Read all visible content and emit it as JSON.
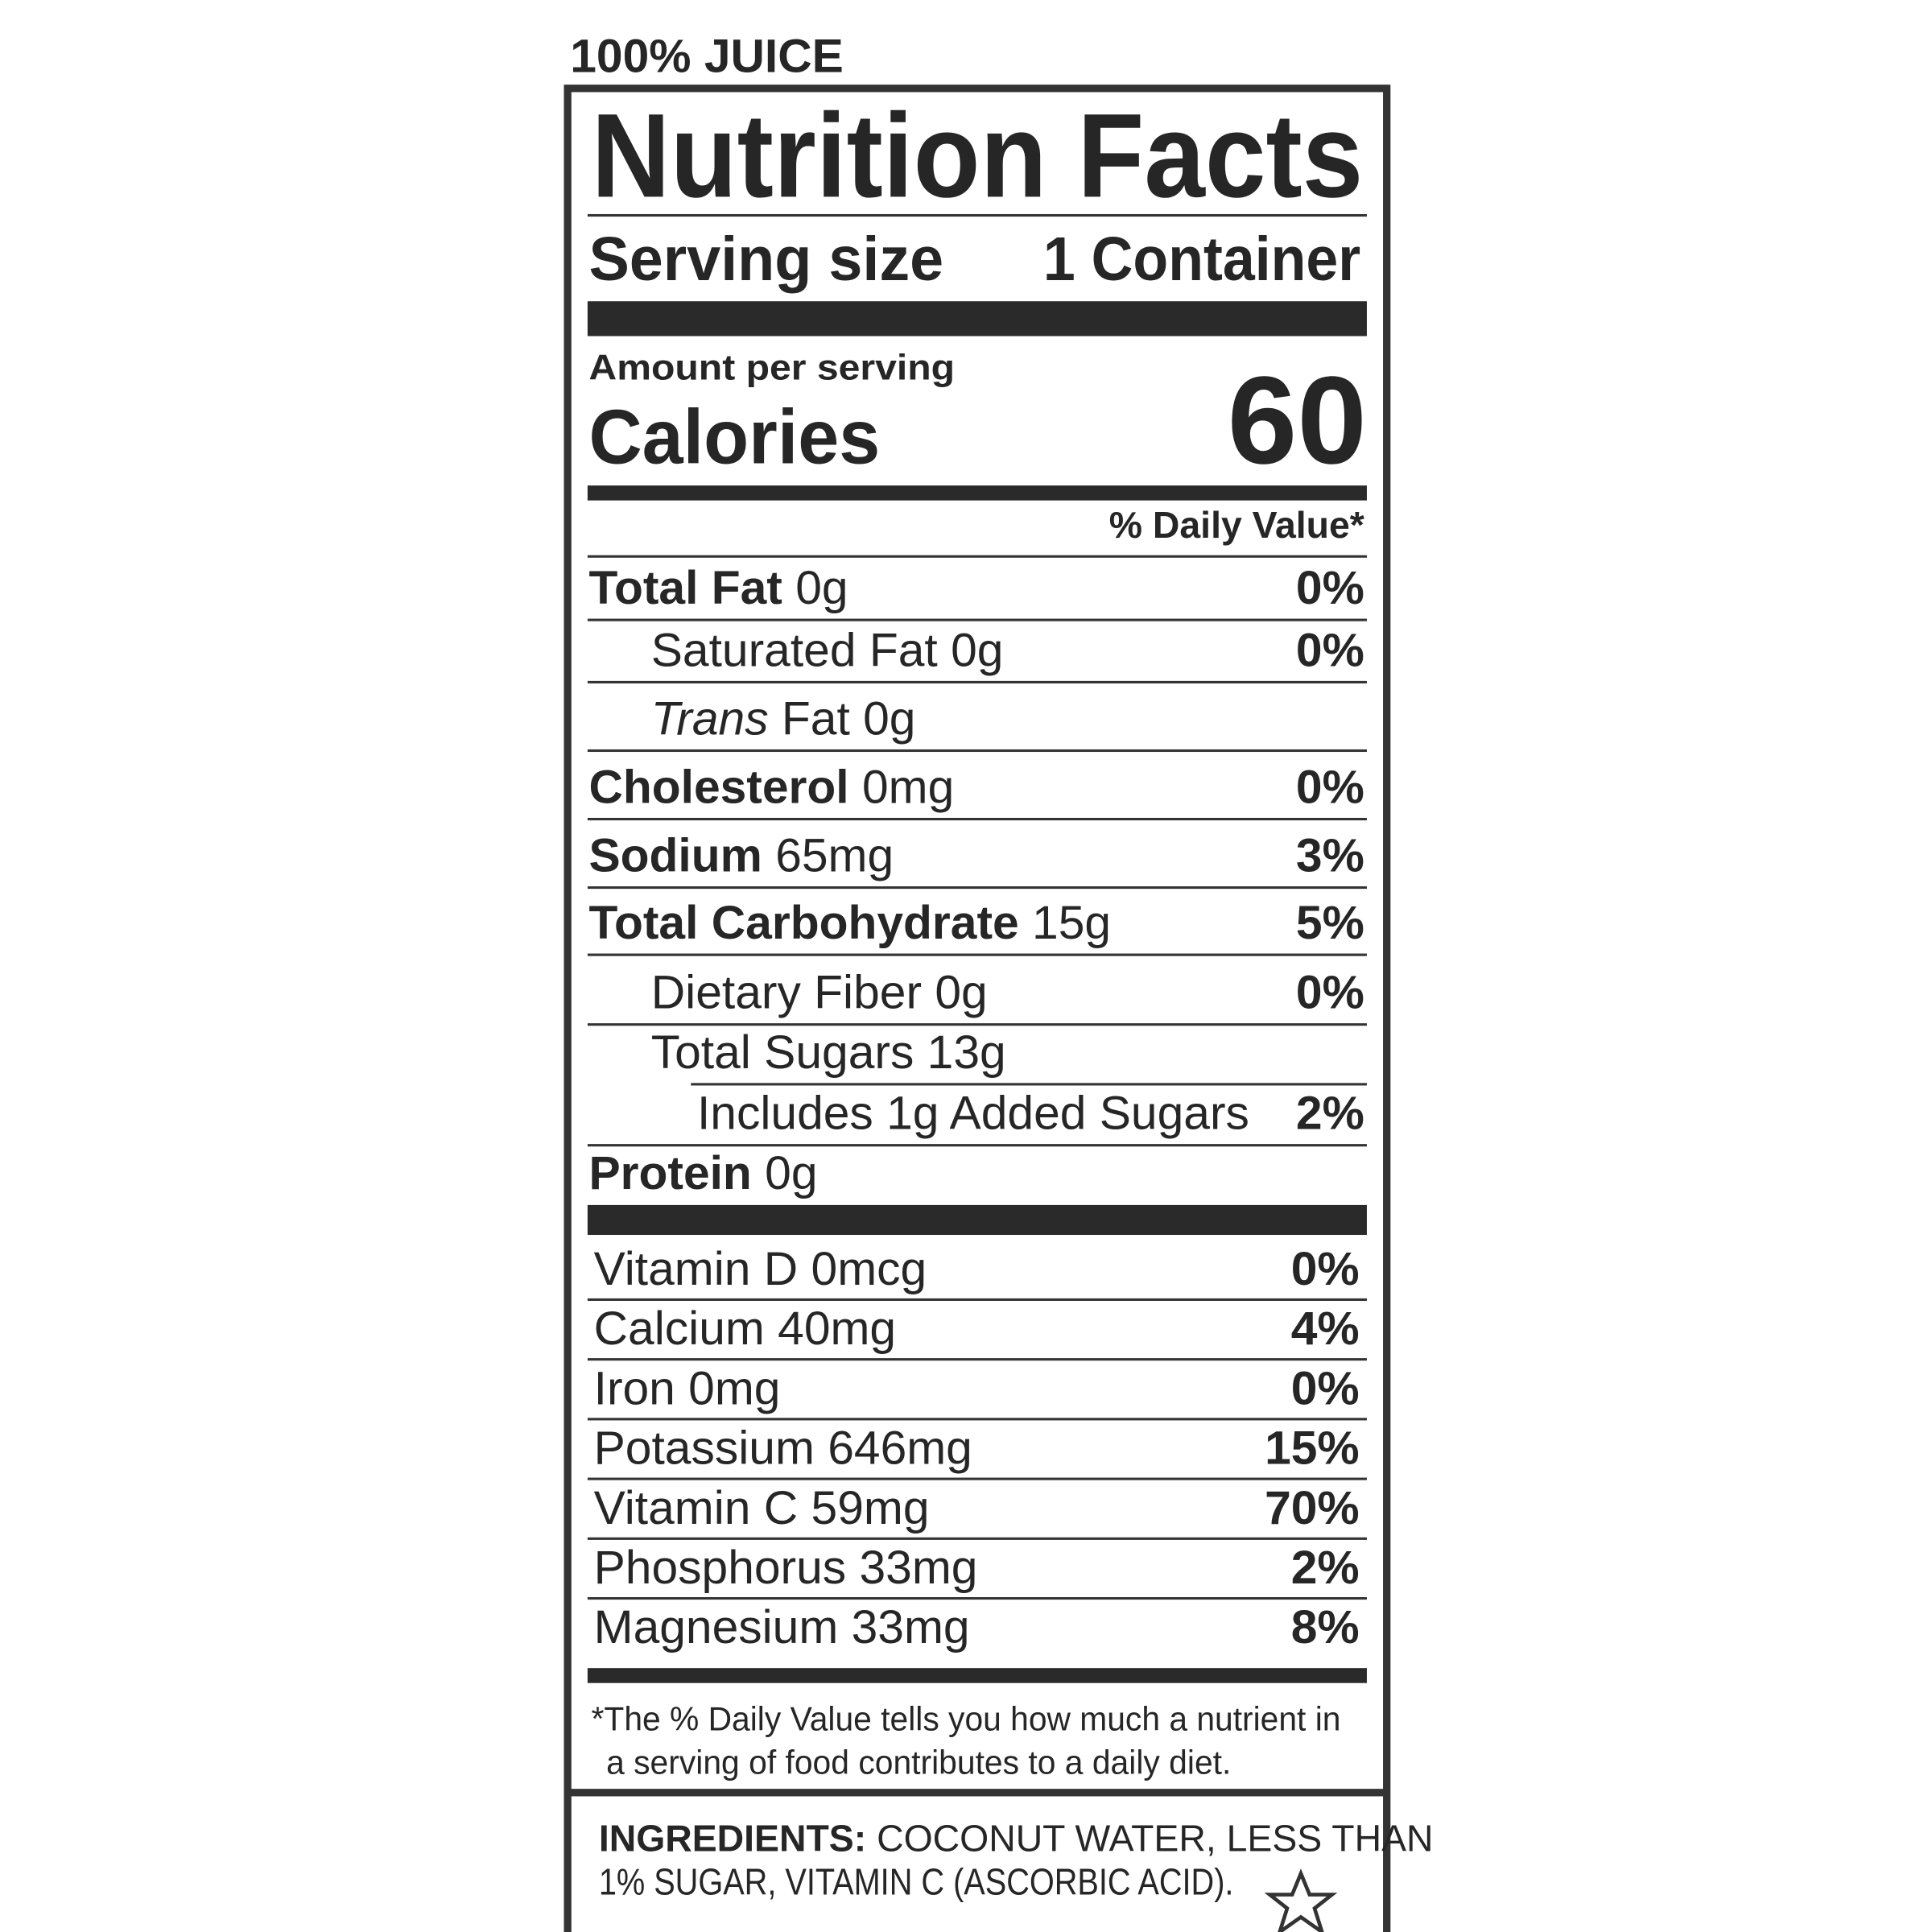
{
  "top_label": "100% JUICE",
  "title": "Nutrition Facts",
  "serving": {
    "label": "Serving size",
    "value": "1 Container"
  },
  "amount_per_serving": "Amount per serving",
  "calories": {
    "label": "Calories",
    "value": "60"
  },
  "daily_value_header": "% Daily Value*",
  "nutrients": [
    {
      "name": "Total Fat",
      "amount": "0g",
      "dv": "0%",
      "level": 0
    },
    {
      "name": "Saturated Fat",
      "amount": "0g",
      "dv": "0%",
      "level": 1
    },
    {
      "name_italic": "Trans",
      "name": "Fat",
      "amount": "0g",
      "level": 1
    },
    {
      "name": "Cholesterol",
      "amount": "0mg",
      "dv": "0%",
      "level": 0
    },
    {
      "name": "Sodium",
      "amount": "65mg",
      "dv": "3%",
      "level": 0
    },
    {
      "name": "Total Carbohydrate",
      "amount": "15g",
      "dv": "5%",
      "level": 0
    },
    {
      "name": "Dietary Fiber",
      "amount": "0g",
      "dv": "0%",
      "level": 1
    },
    {
      "name": "Total Sugars",
      "amount": "13g",
      "level": 1
    },
    {
      "name": "Includes 1g Added Sugars",
      "dv": "2%",
      "level": 2
    },
    {
      "name": "Protein",
      "amount": "0g",
      "level": 0
    }
  ],
  "vitamins": [
    {
      "name": "Vitamin D 0mcg",
      "dv": "0%"
    },
    {
      "name": "Calcium 40mg",
      "dv": "4%"
    },
    {
      "name": "Iron 0mg",
      "dv": "0%"
    },
    {
      "name": "Potassium 646mg",
      "dv": "15%"
    },
    {
      "name": "Vitamin C 59mg",
      "dv": "70%"
    },
    {
      "name": "Phosphorus 33mg",
      "dv": "2%"
    },
    {
      "name": "Magnesium 33mg",
      "dv": "8%"
    }
  ],
  "footnote": [
    "*The % Daily Value tells you how much a nutrient in",
    "a serving of food contributes to a daily diet."
  ],
  "ingredients": {
    "label": "INGREDIENTS:",
    "lines": [
      "COCONUT WATER, LESS THAN",
      "1% SUGAR, VITAMIN C (ASCORBIC ACID)."
    ]
  }
}
